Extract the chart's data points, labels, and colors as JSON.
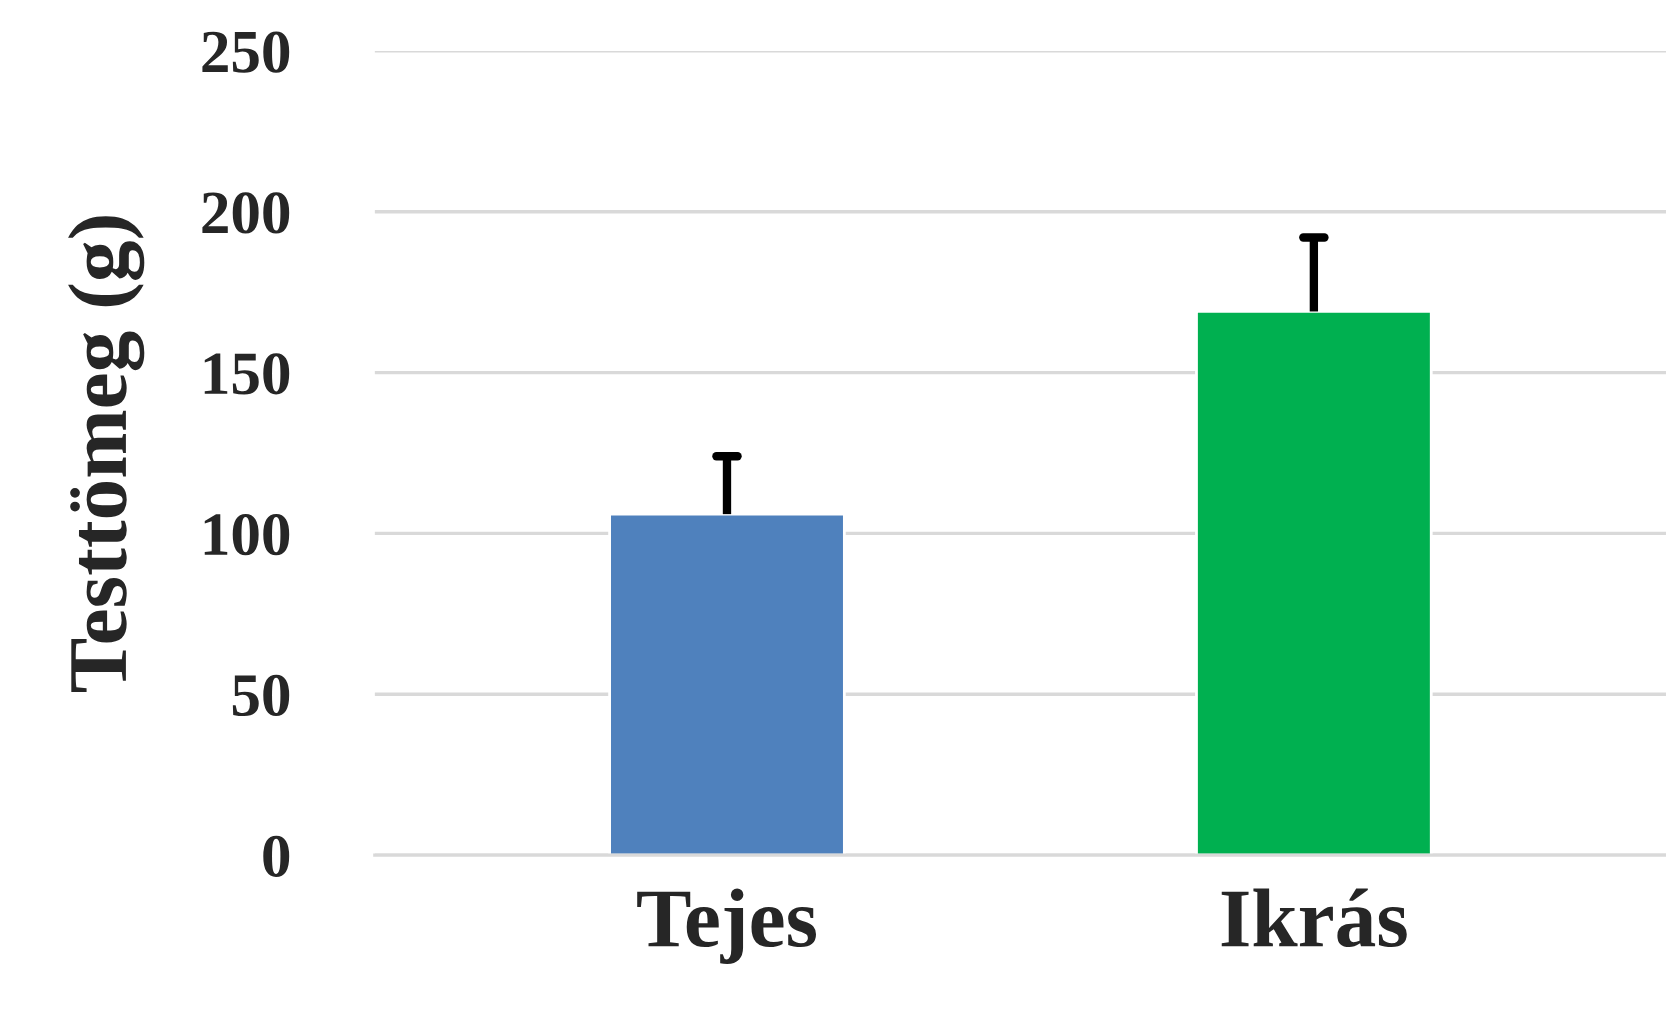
{
  "chart_data": {
    "type": "bar",
    "ylabel": "Testtömeg (g)",
    "categories": [
      "Tejes",
      "Ikrás"
    ],
    "values": [
      106,
      169
    ],
    "colors": [
      "#4f81bd",
      "#00b050"
    ],
    "errors": [
      [
        106,
        124
      ],
      [
        169,
        192
      ]
    ],
    "ylim": [
      0,
      250
    ],
    "yticks": [
      0,
      50,
      100,
      150,
      200,
      250
    ],
    "grid": "y"
  }
}
